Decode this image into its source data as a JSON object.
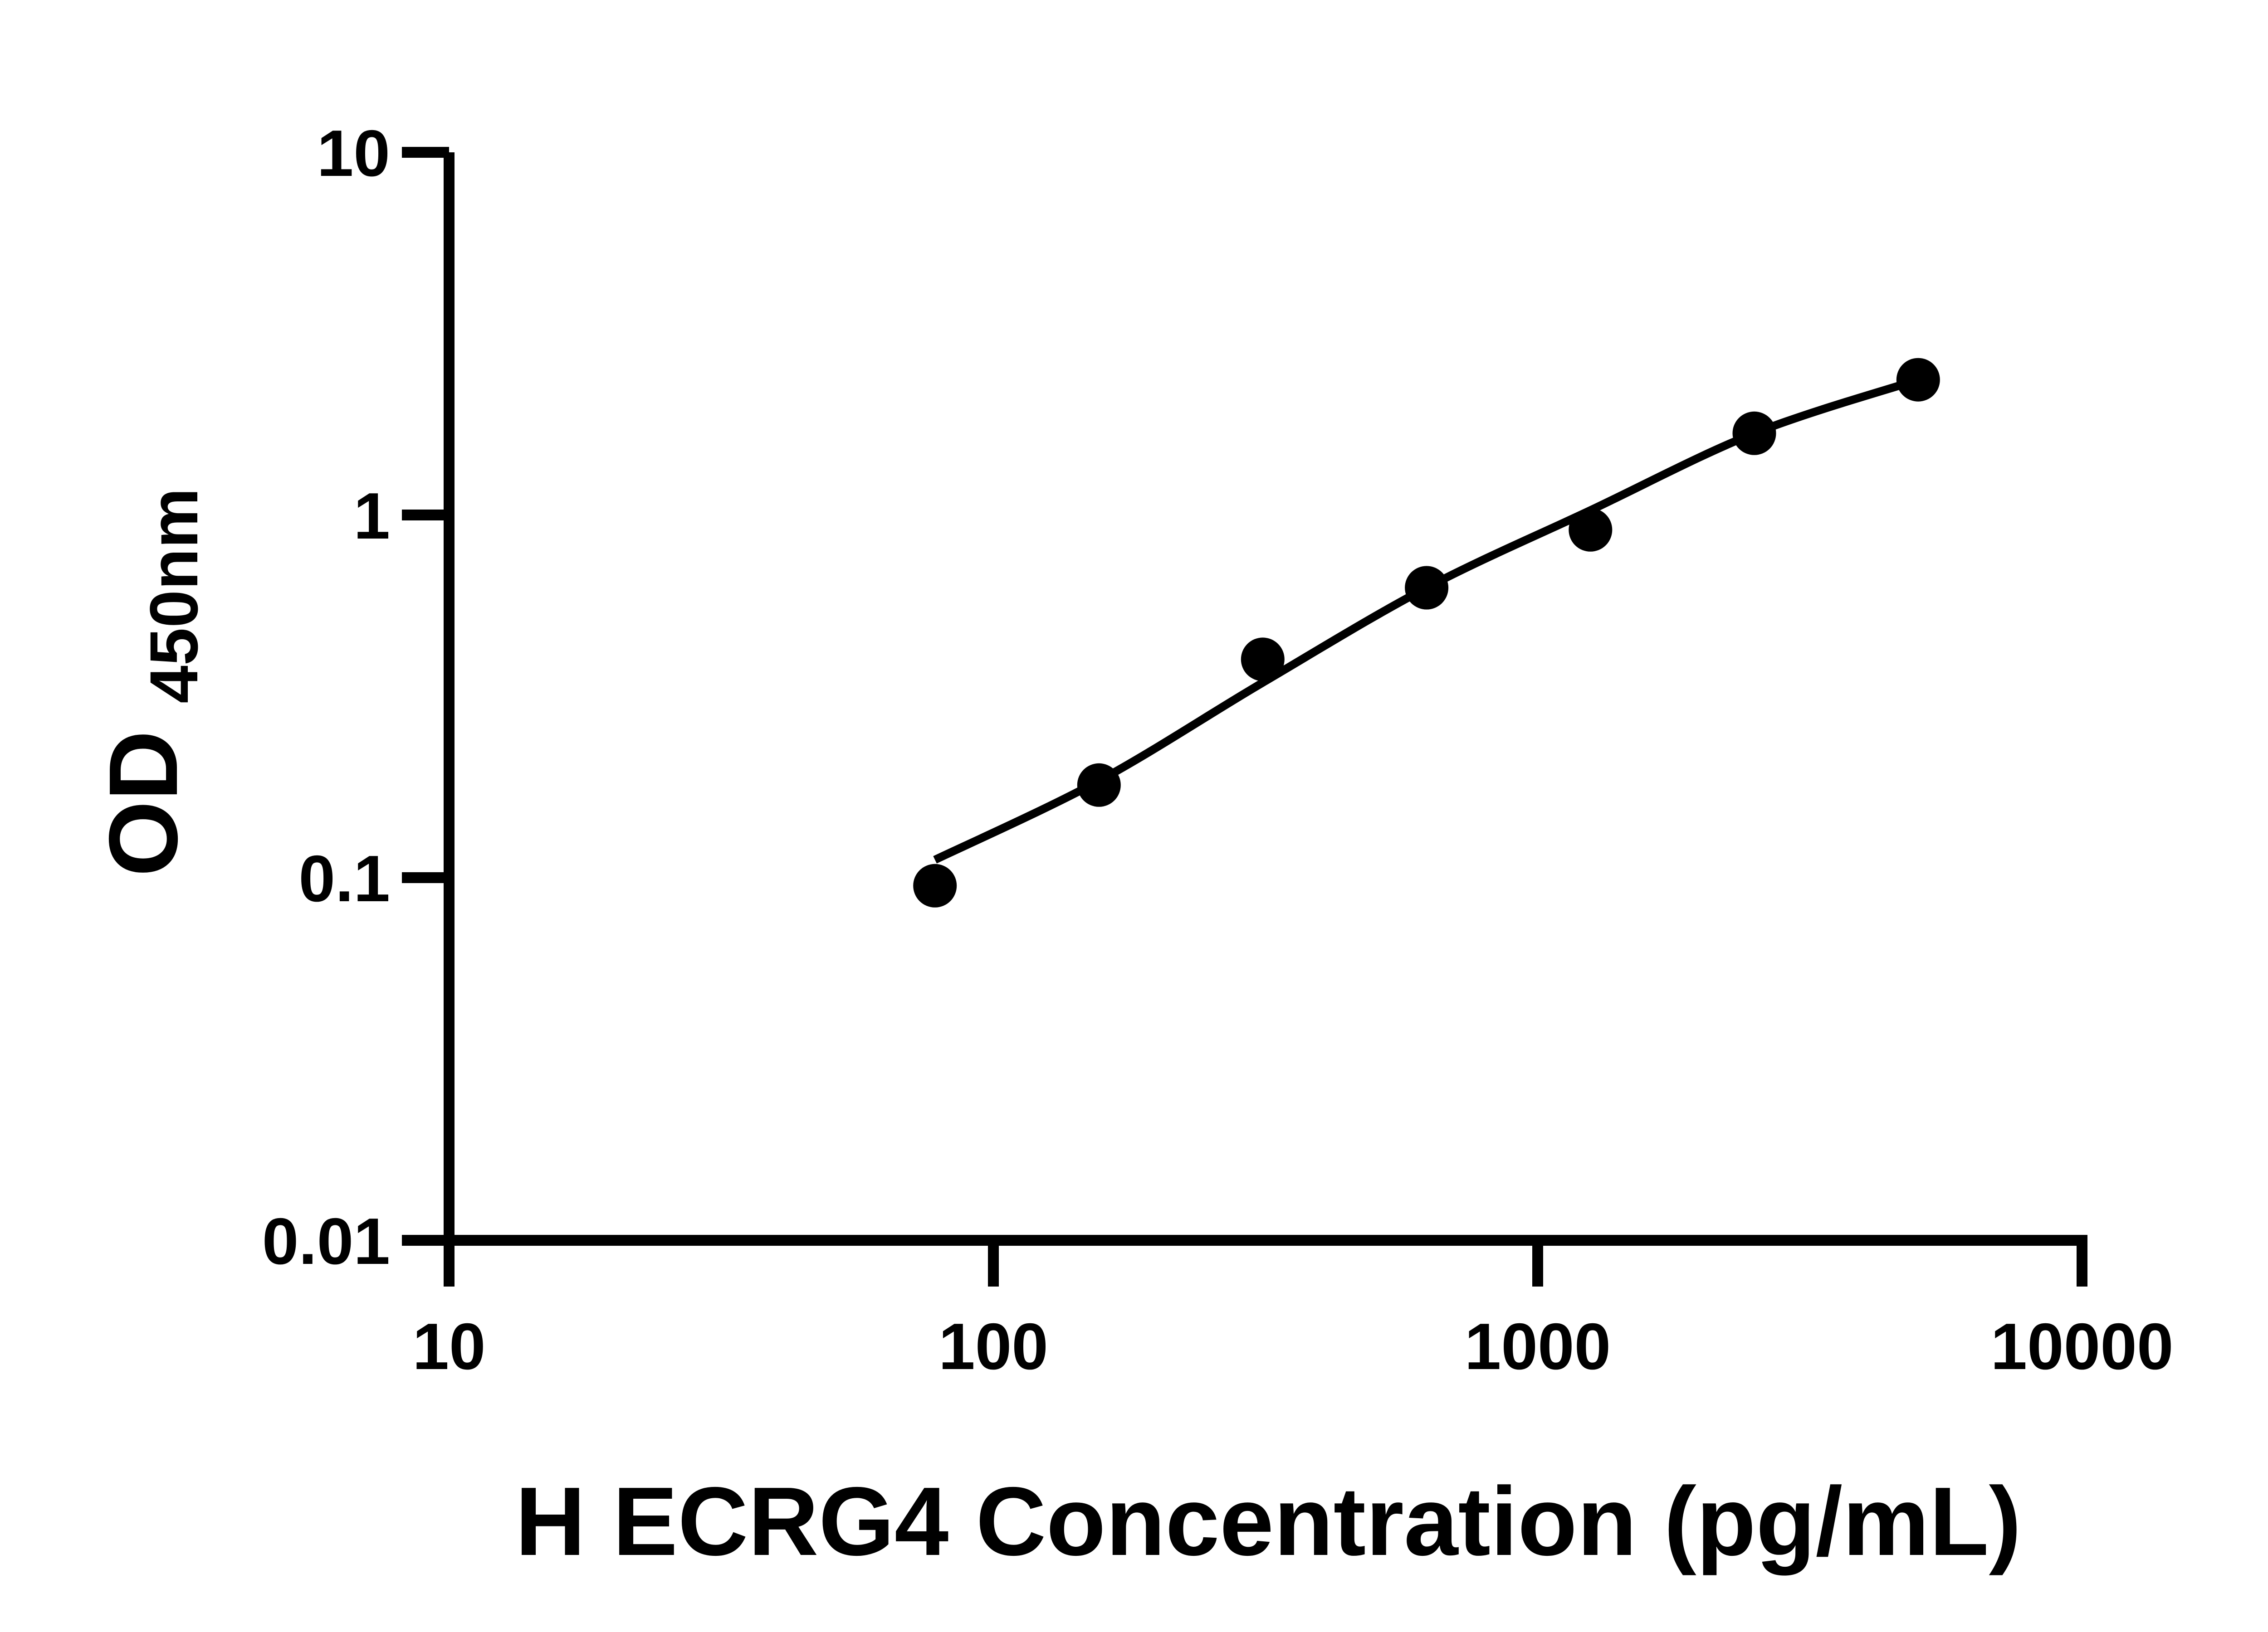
{
  "chart_data": {
    "type": "scatter",
    "title": "",
    "xlabel": "H ECRG4 Concentration (pg/mL)",
    "ylabel_main": "OD",
    "ylabel_sub": "450nm",
    "x_scale": "log",
    "y_scale": "log",
    "xlim": [
      10,
      10000
    ],
    "ylim": [
      0.01,
      10
    ],
    "grid": false,
    "legend": "none",
    "x_ticks": [
      {
        "value": 10,
        "label": "10"
      },
      {
        "value": 100,
        "label": "100"
      },
      {
        "value": 1000,
        "label": "1000"
      },
      {
        "value": 10000,
        "label": "10000"
      }
    ],
    "y_ticks": [
      {
        "value": 10,
        "label": "10"
      },
      {
        "value": 1,
        "label": "1"
      },
      {
        "value": 0.1,
        "label": "0.1"
      },
      {
        "value": 0.01,
        "label": "0.01"
      }
    ],
    "series": [
      {
        "marker": "circle",
        "color": "#000000",
        "x": [
          78.1,
          156.3,
          312.5,
          625,
          1250,
          2500,
          5000
        ],
        "y": [
          0.095,
          0.18,
          0.4,
          0.63,
          0.91,
          1.68,
          2.36
        ]
      }
    ],
    "fit_curve": {
      "color": "#000000",
      "x": [
        78.1,
        156.3,
        312.5,
        625,
        1250,
        2500,
        5000
      ],
      "y": [
        0.112,
        0.185,
        0.345,
        0.63,
        1.03,
        1.68,
        2.36
      ]
    },
    "colors": {
      "axis": "#000000",
      "marker": "#000000",
      "line": "#000000",
      "background": "#ffffff"
    }
  }
}
